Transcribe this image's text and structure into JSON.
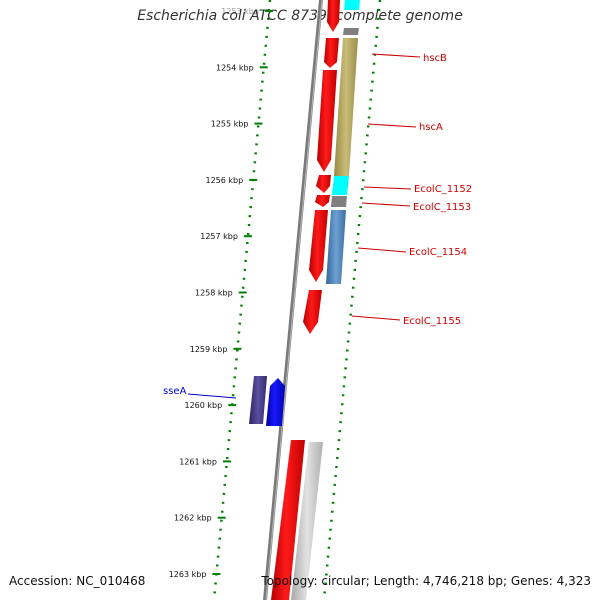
{
  "title": "Escherichia coli ATCC 8739, complete genome",
  "footer": {
    "accession": "Accession: NC_010468",
    "summary": "Topology: circular; Length: 4,746,218 bp; Genes: 4,323"
  },
  "ruler": {
    "unit": "kbp",
    "ticks": [
      {
        "kbp": 1253,
        "label": "1253 kbp"
      },
      {
        "kbp": 1254,
        "label": "1254 kbp"
      },
      {
        "kbp": 1255,
        "label": "1255 kbp"
      },
      {
        "kbp": 1256,
        "label": "1256 kbp"
      },
      {
        "kbp": 1257,
        "label": "1257 kbp"
      },
      {
        "kbp": 1258,
        "label": "1258 kbp"
      },
      {
        "kbp": 1259,
        "label": "1259 kbp"
      },
      {
        "kbp": 1260,
        "label": "1260 kbp"
      },
      {
        "kbp": 1261,
        "label": "1261 kbp"
      },
      {
        "kbp": 1262,
        "label": "1262 kbp"
      },
      {
        "kbp": 1263,
        "label": "1263 kbp"
      }
    ]
  },
  "gene_labels": [
    {
      "name": "hscB",
      "color": "#cc0000"
    },
    {
      "name": "hscA",
      "color": "#cc0000"
    },
    {
      "name": "EcolC_1152",
      "color": "#cc0000"
    },
    {
      "name": "EcolC_1153",
      "color": "#cc0000"
    },
    {
      "name": "EcolC_1154",
      "color": "#cc0000"
    },
    {
      "name": "EcolC_1155",
      "color": "#cc0000"
    },
    {
      "name": "sseA",
      "color": "#0000cc"
    }
  ],
  "colors": {
    "forward_gene": "#ff0000",
    "reverse_gene": "#0000ff",
    "backbone": "#808080",
    "tick": "#008000",
    "cog_tan": "#b5a85f",
    "cog_cyan": "#00ffff",
    "cog_gray": "#808080",
    "cog_steelblue": "#4f86c0",
    "cog_purple": "#4b3f8c",
    "cog_lightgray": "#c0c0c0"
  }
}
